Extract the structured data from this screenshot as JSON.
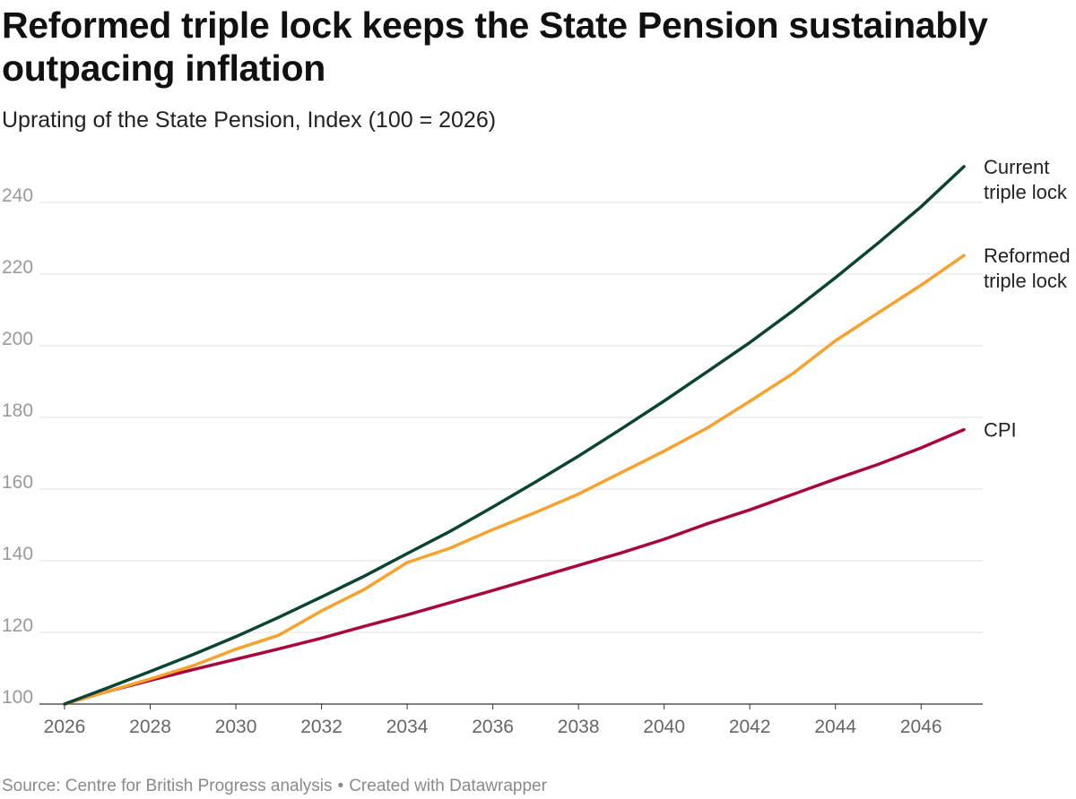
{
  "header": {
    "title": "Reformed triple lock keeps the State Pension sustainably outpacing inflation",
    "subtitle": "Uprating of the State Pension, Index (100 = 2026)"
  },
  "footer": {
    "source": "Source: Centre for British Progress analysis",
    "separator": "•",
    "credit": "Created with Datawrapper"
  },
  "chart_data": {
    "type": "line",
    "title": "Reformed triple lock keeps the State Pension sustainably outpacing inflation",
    "subtitle": "Uprating of the State Pension, Index (100 = 2026)",
    "xlabel": "",
    "ylabel": "",
    "xlim": [
      2026,
      2047
    ],
    "ylim": [
      100,
      250
    ],
    "x_ticks": [
      "2026",
      "2028",
      "2030",
      "2032",
      "2034",
      "2036",
      "2038",
      "2040",
      "2042",
      "2044",
      "2046"
    ],
    "y_ticks": [
      "100",
      "120",
      "140",
      "160",
      "180",
      "200",
      "220",
      "240"
    ],
    "grid": true,
    "legend": "direct labels at line ends (right)",
    "x": [
      2026,
      2027,
      2028,
      2029,
      2030,
      2031,
      2032,
      2033,
      2034,
      2035,
      2036,
      2037,
      2038,
      2039,
      2040,
      2041,
      2042,
      2043,
      2044,
      2045,
      2046,
      2047
    ],
    "series": [
      {
        "name": "Current triple lock",
        "label_lines": [
          "Current",
          "triple lock"
        ],
        "color": "#0b4434",
        "values": [
          100,
          104.5,
          109.1,
          113.8,
          118.8,
          124.2,
          129.9,
          135.7,
          142.0,
          148.2,
          155.0,
          162.0,
          169.2,
          176.8,
          184.6,
          192.7,
          200.9,
          209.7,
          219.0,
          228.7,
          238.8,
          250.0
        ]
      },
      {
        "name": "Reformed triple lock",
        "label_lines": [
          "Reformed",
          "triple lock"
        ],
        "color": "#f6a22d",
        "values": [
          100,
          103.5,
          107.0,
          110.7,
          115.3,
          119.2,
          126.0,
          132.0,
          139.5,
          143.5,
          148.7,
          153.5,
          158.6,
          164.6,
          170.6,
          177.0,
          184.5,
          192.2,
          201.4,
          209.2,
          216.9,
          225.2
        ]
      },
      {
        "name": "CPI",
        "label_lines": [
          "CPI"
        ],
        "color": "#a8063f",
        "values": [
          100,
          103.5,
          106.6,
          109.6,
          112.5,
          115.4,
          118.4,
          121.7,
          124.9,
          128.3,
          131.7,
          135.2,
          138.7,
          142.2,
          146.0,
          150.3,
          154.2,
          158.5,
          162.8,
          166.9,
          171.5,
          176.6
        ]
      }
    ]
  }
}
